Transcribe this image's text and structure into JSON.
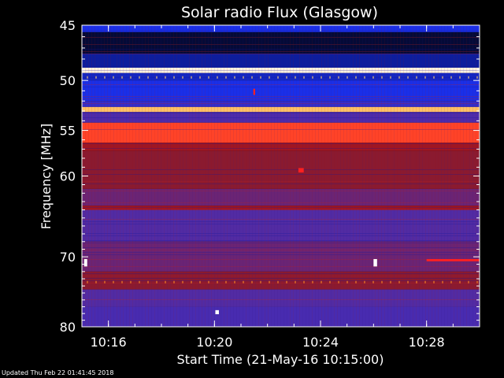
{
  "chart_data": {
    "type": "heatmap",
    "title": "Solar radio Flux (Glasgow)",
    "xlabel": "Start Time (21-May-16 10:15:00)",
    "ylabel": "Frequency [MHz]",
    "xlim": [
      "10:15:00",
      "10:30:00"
    ],
    "ylim": [
      45,
      80
    ],
    "x_ticks": [
      "10:16",
      "10:20",
      "10:24",
      "10:28"
    ],
    "y_ticks": [
      45,
      50,
      55,
      60,
      70,
      80
    ],
    "y_scale": "log",
    "colormap": [
      "#000000",
      "#0a1a8a",
      "#1a2fe8",
      "#5a2a9a",
      "#8a1a30",
      "#c01010",
      "#ff2020",
      "#ffb040",
      "#ffffff"
    ],
    "bands": [
      {
        "f": [
          45.0,
          45.6
        ],
        "level": 0.25
      },
      {
        "f": [
          45.6,
          47.5
        ],
        "level": 0.05
      },
      {
        "f": [
          47.5,
          48.8
        ],
        "level": 0.15
      },
      {
        "f": [
          48.8,
          49.3
        ],
        "level": 0.98
      },
      {
        "f": [
          49.3,
          50.0
        ],
        "level": 0.2
      },
      {
        "f": [
          50.0,
          52.0
        ],
        "level": 0.25
      },
      {
        "f": [
          52.0,
          52.6
        ],
        "level": 0.3
      },
      {
        "f": [
          52.6,
          53.1
        ],
        "level": 0.9
      },
      {
        "f": [
          53.1,
          54.2
        ],
        "level": 0.35
      },
      {
        "f": [
          54.2,
          56.3
        ],
        "level": 0.78
      },
      {
        "f": [
          56.3,
          57.2
        ],
        "level": 0.55
      },
      {
        "f": [
          57.2,
          61.5
        ],
        "level": 0.5
      },
      {
        "f": [
          61.5,
          63.5
        ],
        "level": 0.42
      },
      {
        "f": [
          63.5,
          64.0
        ],
        "level": 0.55
      },
      {
        "f": [
          64.0,
          68.0
        ],
        "level": 0.36
      },
      {
        "f": [
          68.0,
          72.0
        ],
        "level": 0.42
      },
      {
        "f": [
          72.0,
          74.5
        ],
        "level": 0.5
      },
      {
        "f": [
          74.5,
          77.0
        ],
        "level": 0.36
      },
      {
        "f": [
          77.0,
          80.0
        ],
        "level": 0.34
      }
    ],
    "features": [
      {
        "time": [
          "10:28:00",
          "10:30:00"
        ],
        "f": [
          70.3,
          70.6
        ],
        "level": 0.75
      },
      {
        "time": [
          "10:15:05",
          "10:15:12"
        ],
        "f": [
          70.3,
          71.3
        ],
        "level": 1.0
      },
      {
        "time": [
          "10:26:00",
          "10:26:08"
        ],
        "f": [
          70.3,
          71.3
        ],
        "level": 1.0
      },
      {
        "time": [
          "10:20:02",
          "10:20:10"
        ],
        "f": [
          77.5,
          78.1
        ],
        "level": 1.0
      },
      {
        "time": [
          "10:23:10",
          "10:23:22"
        ],
        "f": [
          59.1,
          59.6
        ],
        "level": 0.75
      },
      {
        "time": [
          "10:21:28",
          "10:21:32"
        ],
        "f": [
          50.8,
          51.4
        ],
        "level": 0.75
      }
    ]
  },
  "footer": "Updated Thu Feb 22 01:41:45 2018"
}
